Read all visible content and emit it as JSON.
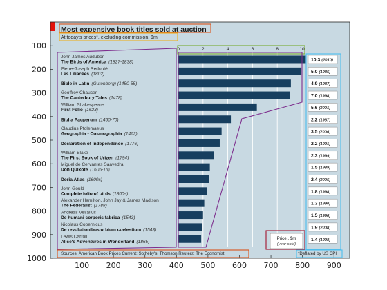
{
  "figure": {
    "title": "Most expensive book titles sold at auction",
    "subtitle": "At today's prices*, excluding commission, $m",
    "source": "Sources: American Book Prices Current; Sotheby's; Thomson Reuters; The Economist",
    "footnote": "*Deflated by US CPI",
    "legend_price": "Price , $m",
    "legend_year": "(year sold)",
    "colors": {
      "background": "#c8d9e2",
      "bar": "#173f5f",
      "accent_red": "#e3120b",
      "annot_purple": "#7e2f8e",
      "annot_orange": "#d95319",
      "annot_green": "#77ac30",
      "annot_yellow": "#edb120",
      "annot_cyan": "#4dbeee",
      "annot_darkred": "#a2142f"
    }
  },
  "chart_data": {
    "type": "bar",
    "orientation": "horizontal",
    "value_axis_ticks": [
      "0",
      "2",
      "4",
      "6",
      "8",
      "10"
    ],
    "value_axis_range": [
      0,
      10
    ],
    "outer_axes": {
      "x_ticks": [
        "100",
        "200",
        "300",
        "400",
        "500",
        "600",
        "700",
        "800",
        "900"
      ],
      "y_ticks": [
        "100",
        "200",
        "300",
        "400",
        "500",
        "600",
        "700",
        "800",
        "900",
        "1000"
      ],
      "x_range": [
        0,
        950
      ],
      "y_range": [
        0,
        1000
      ],
      "y_reversed": true
    },
    "entries": [
      {
        "author": "John James Audubon",
        "book": "The Birds of America",
        "years": "(1827-1838)",
        "value": 10.3,
        "price": "10.3",
        "sold": "(2010)"
      },
      {
        "author": "Pierre-Joseph Redouté",
        "book": "Les Liliacées",
        "years": "(1802)",
        "value": 9.95,
        "price": "5.0",
        "sold": "(1985)"
      },
      {
        "author": "",
        "book": "Bible in Latin",
        "years": "(Gutenberg) (1450-55)",
        "value": 9.1,
        "price": "4.9",
        "sold": "(1987)"
      },
      {
        "author": "Geoffrey Chaucer",
        "book": "The Canterbury Tales",
        "years": "(1478)",
        "value": 9.0,
        "price": "7.0",
        "sold": "(1998)"
      },
      {
        "author": "William Shakespeare",
        "book": "First Folio",
        "years": "(1623)",
        "value": 6.35,
        "price": "5.6",
        "sold": "(2001)"
      },
      {
        "author": "",
        "book": "Biblia Pauperum",
        "years": "(1460-70)",
        "value": 4.25,
        "price": "2.2",
        "sold": "(1987)"
      },
      {
        "author": "Claudius Ptolemaeus",
        "book": "Geographia - Cosmographia",
        "years": "(1462)",
        "value": 3.5,
        "price": "3.5",
        "sold": "(2006)"
      },
      {
        "author": "",
        "book": "Declaration of Independence",
        "years": "(1776)",
        "value": 3.35,
        "price": "2.2",
        "sold": "(1991)"
      },
      {
        "author": "William Blake",
        "book": "The First Book of Urizen",
        "years": "(1794)",
        "value": 2.85,
        "price": "2.3",
        "sold": "(1999)"
      },
      {
        "author": "Miguel de Cervantes Saavedra",
        "book": "Don Quixote",
        "years": "(1605-15)",
        "value": 2.55,
        "price": "1.5",
        "sold": "(1989)"
      },
      {
        "author": "",
        "book": "Doria Atlas",
        "years": "(1600s)",
        "value": 2.5,
        "price": "2.4",
        "sold": "(2005)"
      },
      {
        "author": "John Gould",
        "book": "Complete folio of birds",
        "years": "(1800s)",
        "value": 2.3,
        "price": "1.8",
        "sold": "(1998)"
      },
      {
        "author": "Alexander Hamilton, John Jay & James Madison",
        "book": "The Federalist",
        "years": "(1788)",
        "value": 2.1,
        "price": "1.3",
        "sold": "(1990)"
      },
      {
        "author": "Andreas Vesalius",
        "book": "De humani corporis fabrica",
        "years": "(1543)",
        "value": 2.0,
        "price": "1.5",
        "sold": "(1998)"
      },
      {
        "author": "Nicolaus Copernicus",
        "book": "De revolutionibus orbium coelestium",
        "years": "(1543)",
        "value": 1.9,
        "price": "1.9",
        "sold": "(2008)"
      },
      {
        "author": "Lewis Carroll",
        "book": "Alice's Adventures in Wonderland",
        "years": "(1865)",
        "value": 1.85,
        "price": "1.4",
        "sold": "(1998)"
      }
    ]
  }
}
